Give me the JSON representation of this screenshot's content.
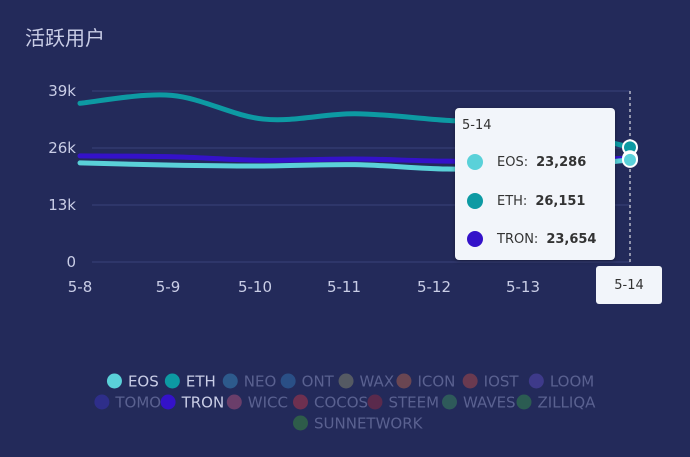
{
  "chart_data": {
    "type": "line",
    "title": "活跃用户",
    "categories": [
      "5-8",
      "5-9",
      "5-10",
      "5-11",
      "5-12",
      "5-13",
      "5-14"
    ],
    "ylim": [
      0,
      39000
    ],
    "yticks": [
      0,
      13000,
      26000,
      39000
    ],
    "ytick_labels": [
      "0",
      "13k",
      "26k",
      "39k"
    ],
    "grid": true,
    "series": [
      {
        "name": "EOS",
        "color": "#5ad1d9",
        "values": [
          22600,
          22100,
          21900,
          22200,
          21200,
          21400,
          23286
        ]
      },
      {
        "name": "ETH",
        "color": "#0d9aa3",
        "values": [
          36200,
          38000,
          32600,
          33800,
          32300,
          31000,
          26151
        ]
      },
      {
        "name": "TRON",
        "color": "#3412c9",
        "values": [
          24200,
          24000,
          23200,
          23500,
          23000,
          23200,
          23654
        ]
      }
    ],
    "tooltip": {
      "title": "5-14",
      "rows": [
        {
          "name": "EOS:",
          "value": "23,286",
          "color": "#5ad1d9"
        },
        {
          "name": "ETH:",
          "value": "26,151",
          "color": "#0d9aa3"
        },
        {
          "name": "TRON:",
          "value": "23,654",
          "color": "#3412c9"
        }
      ]
    },
    "axis_pointer_label": "5-14",
    "legend": [
      {
        "name": "EOS",
        "color": "#5ad1d9",
        "active": true
      },
      {
        "name": "ETH",
        "color": "#0d9aa3",
        "active": true
      },
      {
        "name": "NEO",
        "color": "#2d5a8c",
        "active": false
      },
      {
        "name": "ONT",
        "color": "#2a4f86",
        "active": false
      },
      {
        "name": "WAX",
        "color": "#555a63",
        "active": false
      },
      {
        "name": "ICON",
        "color": "#6a4652",
        "active": false
      },
      {
        "name": "IOST",
        "color": "#6a3a50",
        "active": false
      },
      {
        "name": "LOOM",
        "color": "#3e3a8a",
        "active": false
      },
      {
        "name": "TOMO",
        "color": "#2e2e8a",
        "active": false
      },
      {
        "name": "TRON",
        "color": "#3412c9",
        "active": true
      },
      {
        "name": "WICC",
        "color": "#6a3e6a",
        "active": false
      },
      {
        "name": "COCOS",
        "color": "#6e3050",
        "active": false
      },
      {
        "name": "STEEM",
        "color": "#5a2a4c",
        "active": false
      },
      {
        "name": "WAVES",
        "color": "#2e5a5a",
        "active": false
      },
      {
        "name": "ZILLIQA",
        "color": "#2b5c52",
        "active": false
      },
      {
        "name": "SUNNETWORK",
        "color": "#2e5c4a",
        "active": false
      }
    ]
  }
}
